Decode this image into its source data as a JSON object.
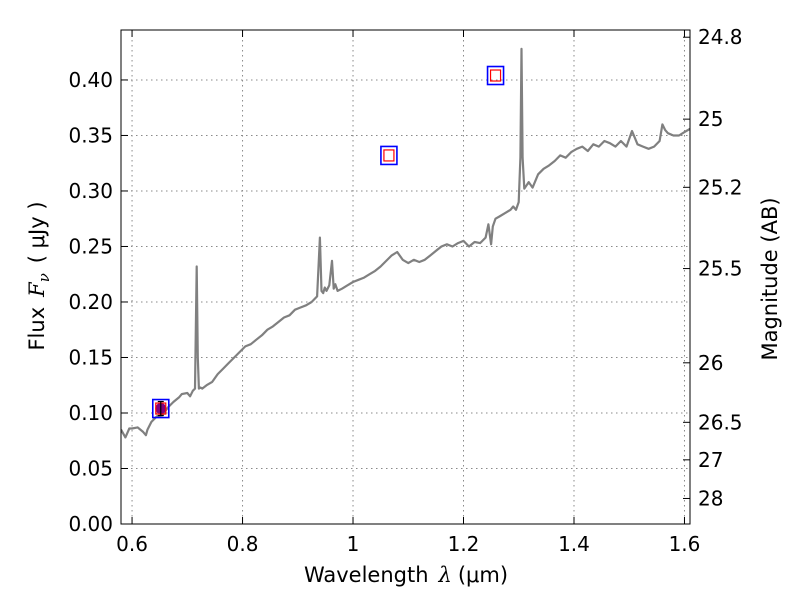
{
  "chart_data": {
    "type": "line",
    "xlabel": "Wavelength",
    "xlabel_symbol": "λ",
    "xlabel_unit": "(μm)",
    "ylabel": "Flux",
    "ylabel_symbol": "F",
    "ylabel_subscript": "ν",
    "ylabel_unit": "( μJy )",
    "ylabel_right": "Magnitude (AB)",
    "xlim": [
      0.58,
      1.61
    ],
    "ylim": [
      0.0,
      0.445
    ],
    "grid": true,
    "x_ticks": [
      0.6,
      0.8,
      1.0,
      1.2,
      1.4,
      1.6
    ],
    "x_tick_labels": [
      "0.6",
      "0.8",
      "1",
      "1.2",
      "1.4",
      "1.6"
    ],
    "y_ticks": [
      0.0,
      0.05,
      0.1,
      0.15,
      0.2,
      0.25,
      0.3,
      0.35,
      0.4
    ],
    "y_tick_labels": [
      "0.00",
      "0.05",
      "0.10",
      "0.15",
      "0.20",
      "0.25",
      "0.30",
      "0.35",
      "0.40"
    ],
    "right_ticks": [
      {
        "label": "24.8",
        "flux": 0.4385
      },
      {
        "label": "25",
        "flux": 0.3647
      },
      {
        "label": "25.2",
        "flux": 0.3033
      },
      {
        "label": "25.5",
        "flux": 0.2301
      },
      {
        "label": "26",
        "flux": 0.1452
      },
      {
        "label": "26.5",
        "flux": 0.0916
      },
      {
        "label": "27",
        "flux": 0.0578
      },
      {
        "label": "28",
        "flux": 0.023
      }
    ],
    "spectrum_color": "#808080",
    "spectrum": {
      "x": [
        0.58,
        0.588,
        0.595,
        0.6,
        0.61,
        0.62,
        0.625,
        0.628,
        0.635,
        0.645,
        0.655,
        0.665,
        0.675,
        0.685,
        0.69,
        0.7,
        0.705,
        0.71,
        0.714,
        0.717,
        0.719,
        0.721,
        0.724,
        0.727,
        0.735,
        0.745,
        0.755,
        0.765,
        0.775,
        0.785,
        0.795,
        0.805,
        0.815,
        0.825,
        0.835,
        0.845,
        0.855,
        0.865,
        0.875,
        0.885,
        0.895,
        0.905,
        0.915,
        0.925,
        0.935,
        0.94,
        0.943,
        0.946,
        0.949,
        0.952,
        0.957,
        0.962,
        0.965,
        0.968,
        0.972,
        0.98,
        0.99,
        1.0,
        1.01,
        1.02,
        1.03,
        1.04,
        1.05,
        1.06,
        1.07,
        1.08,
        1.09,
        1.1,
        1.11,
        1.12,
        1.13,
        1.14,
        1.15,
        1.16,
        1.17,
        1.18,
        1.19,
        1.2,
        1.21,
        1.22,
        1.23,
        1.24,
        1.245,
        1.25,
        1.253,
        1.258,
        1.265,
        1.275,
        1.285,
        1.29,
        1.295,
        1.3,
        1.303,
        1.305,
        1.307,
        1.31,
        1.318,
        1.325,
        1.335,
        1.345,
        1.355,
        1.365,
        1.375,
        1.385,
        1.395,
        1.405,
        1.415,
        1.425,
        1.435,
        1.445,
        1.455,
        1.465,
        1.475,
        1.485,
        1.495,
        1.505,
        1.515,
        1.525,
        1.535,
        1.545,
        1.555,
        1.56,
        1.565,
        1.57,
        1.58,
        1.59,
        1.6,
        1.61
      ],
      "y": [
        0.085,
        0.078,
        0.086,
        0.086,
        0.087,
        0.083,
        0.08,
        0.085,
        0.092,
        0.097,
        0.098,
        0.105,
        0.11,
        0.114,
        0.117,
        0.118,
        0.115,
        0.12,
        0.122,
        0.232,
        0.15,
        0.122,
        0.123,
        0.122,
        0.125,
        0.128,
        0.135,
        0.14,
        0.145,
        0.15,
        0.155,
        0.16,
        0.162,
        0.166,
        0.17,
        0.175,
        0.178,
        0.182,
        0.186,
        0.188,
        0.193,
        0.195,
        0.197,
        0.2,
        0.205,
        0.258,
        0.21,
        0.208,
        0.213,
        0.21,
        0.215,
        0.237,
        0.212,
        0.216,
        0.21,
        0.212,
        0.215,
        0.218,
        0.22,
        0.222,
        0.225,
        0.228,
        0.232,
        0.237,
        0.242,
        0.245,
        0.238,
        0.235,
        0.238,
        0.236,
        0.238,
        0.242,
        0.246,
        0.25,
        0.252,
        0.25,
        0.253,
        0.255,
        0.25,
        0.254,
        0.253,
        0.258,
        0.27,
        0.252,
        0.268,
        0.275,
        0.277,
        0.28,
        0.283,
        0.286,
        0.283,
        0.29,
        0.33,
        0.428,
        0.33,
        0.302,
        0.308,
        0.303,
        0.315,
        0.32,
        0.323,
        0.327,
        0.332,
        0.33,
        0.335,
        0.338,
        0.34,
        0.336,
        0.342,
        0.34,
        0.345,
        0.343,
        0.34,
        0.345,
        0.34,
        0.354,
        0.342,
        0.34,
        0.338,
        0.34,
        0.345,
        0.36,
        0.355,
        0.352,
        0.35,
        0.35,
        0.353,
        0.356
      ]
    },
    "photometry": [
      {
        "x": 0.652,
        "y": 0.104,
        "outer_color": "#0000ff",
        "inner_color": "#ff0000",
        "filled": true,
        "fill_color": "#800080",
        "error_bar": true
      },
      {
        "x": 1.065,
        "y": 0.332,
        "outer_color": "#0000ff",
        "inner_color": "#ff0000",
        "filled": false
      },
      {
        "x": 1.258,
        "y": 0.404,
        "outer_color": "#0000ff",
        "inner_color": "#ff0000",
        "filled": false
      }
    ]
  }
}
